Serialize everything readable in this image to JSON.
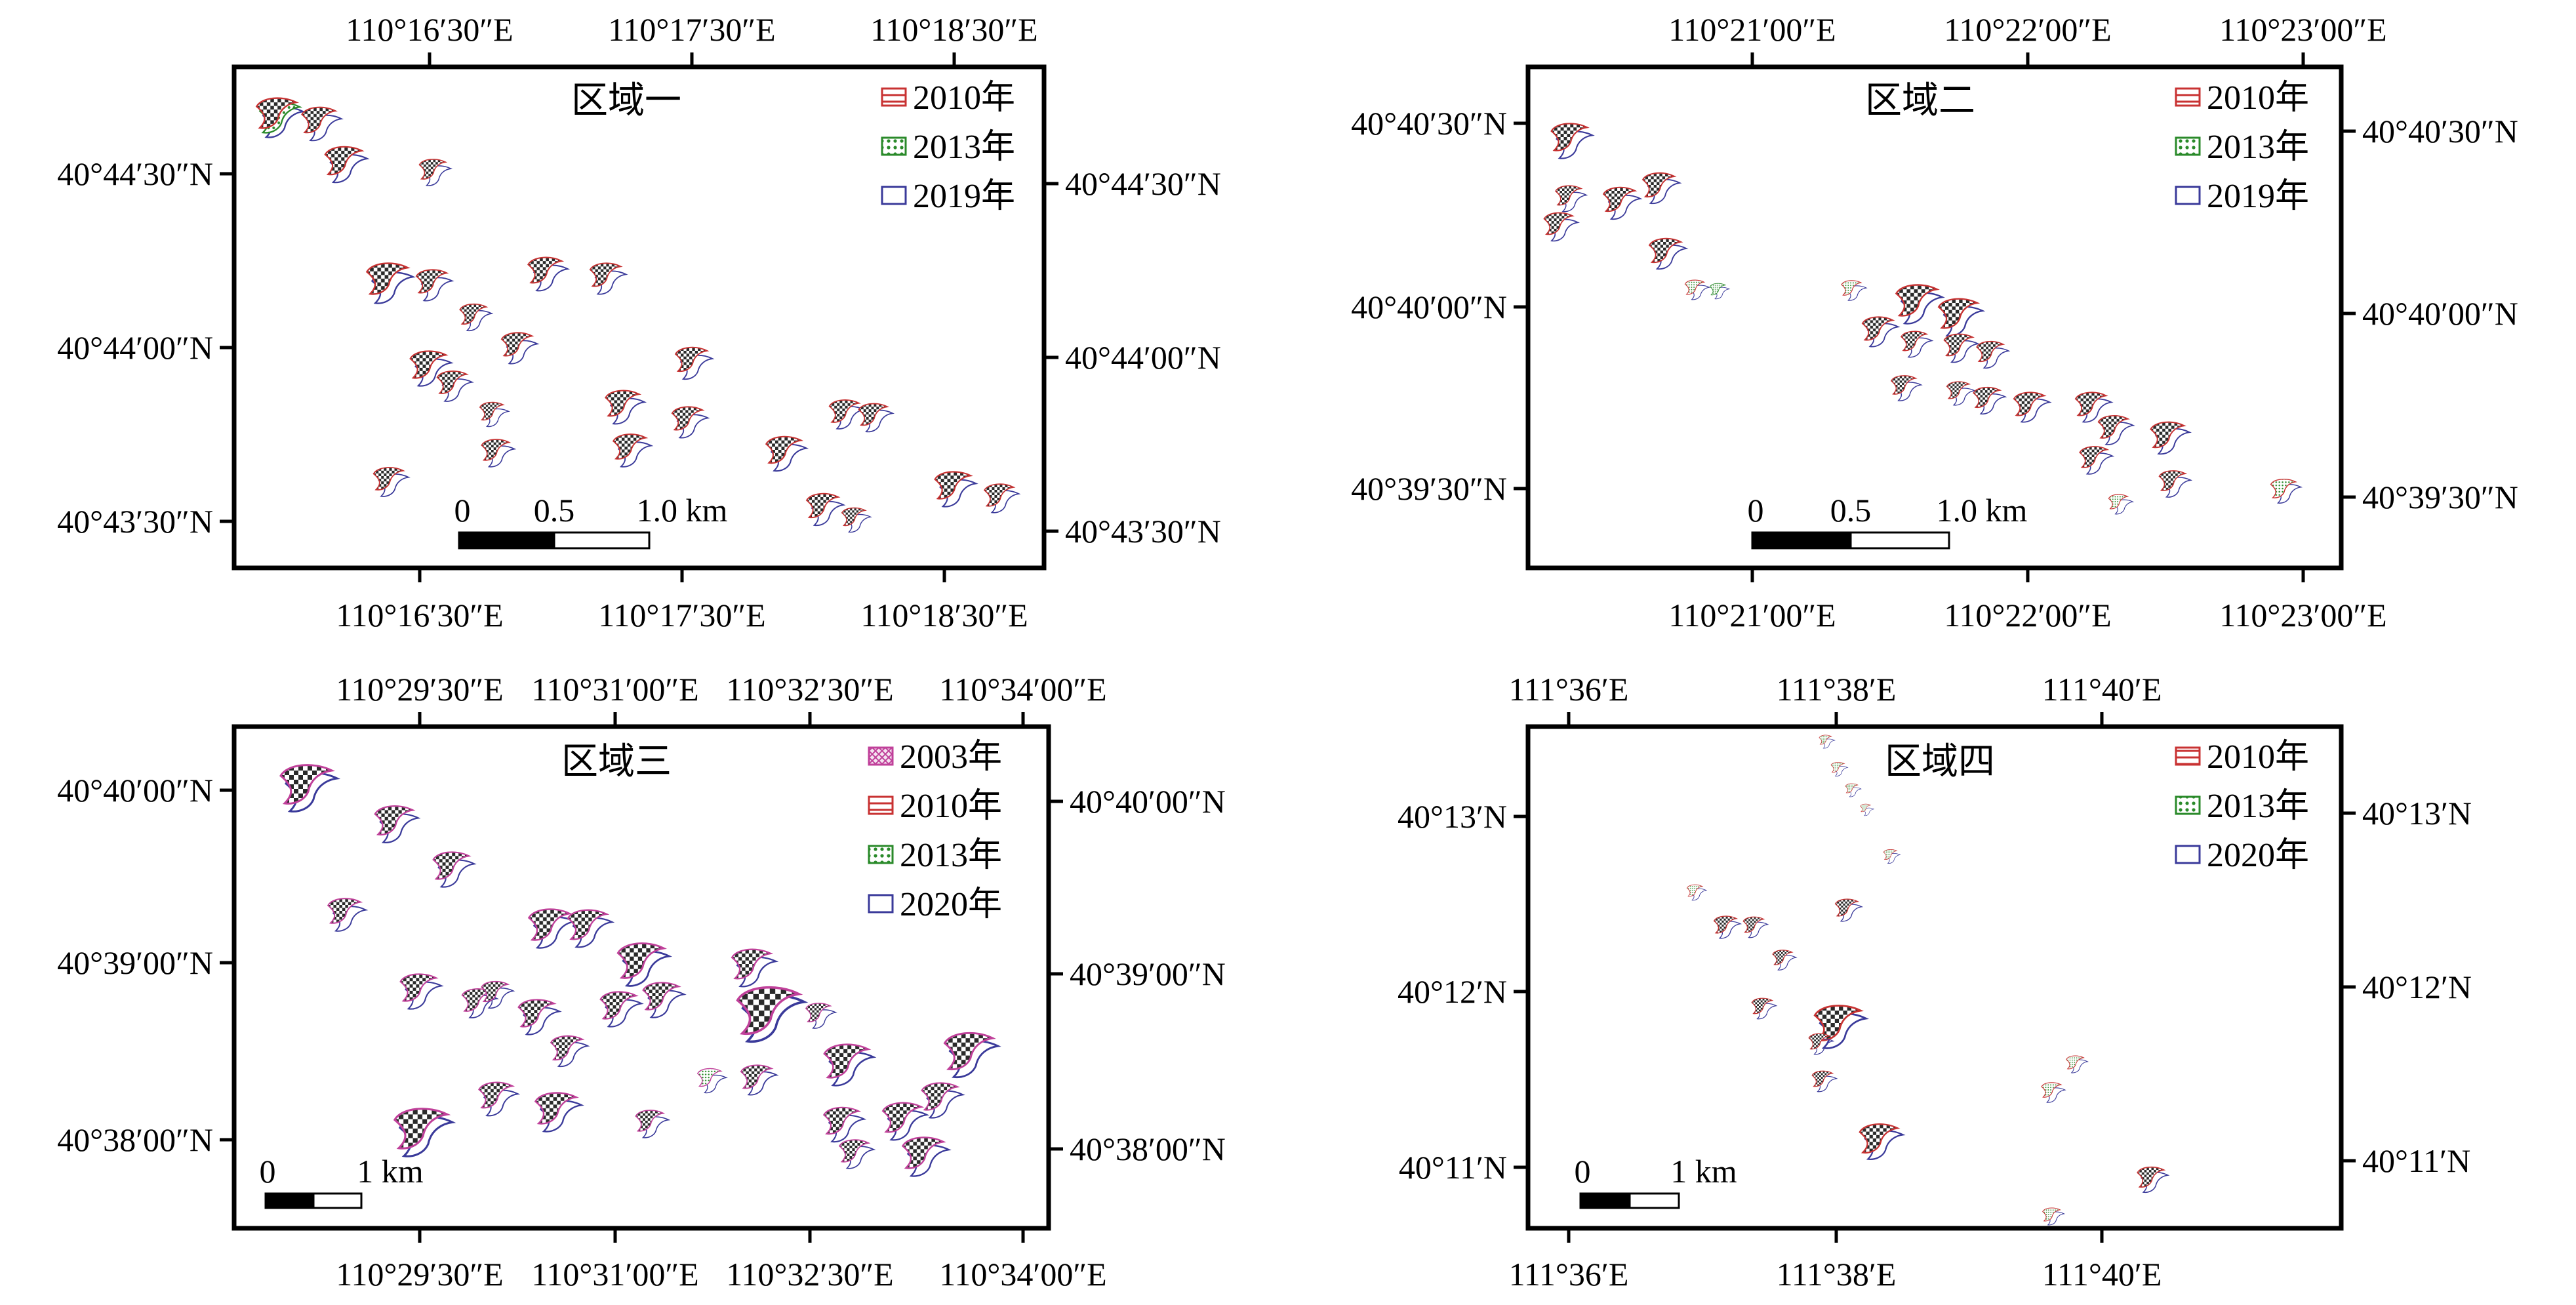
{
  "colors": {
    "y2003": "#c0409a",
    "y2010": "#c83232",
    "y2013": "#2a8a2a",
    "y2019": "#3a3a9a",
    "y2020": "#3a3a9a",
    "dune_fill": "#cccccc",
    "frame": "#000000"
  },
  "panels": [
    {
      "title": "区域一",
      "top_labels": [
        "110°16′30″E",
        "110°17′30″E",
        "110°18′30″E"
      ],
      "bottom_labels": [
        "110°16′30″E",
        "110°17′30″E",
        "110°18′30″E"
      ],
      "left_labels": [
        "40°44′30″N",
        "40°44′00″N",
        "40°43′30″N"
      ],
      "right_labels": [
        "40°44′30″N",
        "40°44′00″N",
        "40°43′30″N"
      ],
      "legend": [
        {
          "label": "2010年",
          "pattern": "y2010"
        },
        {
          "label": "2013年",
          "pattern": "y2013"
        },
        {
          "label": "2019年",
          "pattern": "y2019"
        }
      ],
      "scale": {
        "labels": [
          "0",
          "0.5",
          "1.0 km"
        ]
      }
    },
    {
      "title": "区域二",
      "top_labels": [
        "110°21′00″E",
        "110°22′00″E",
        "110°23′00″E"
      ],
      "bottom_labels": [
        "110°21′00″E",
        "110°22′00″E",
        "110°23′00″E"
      ],
      "left_labels": [
        "40°40′30″N",
        "40°40′00″N",
        "40°39′30″N"
      ],
      "right_labels": [
        "40°40′30″N",
        "40°40′00″N",
        "40°39′30″N"
      ],
      "legend": [
        {
          "label": "2010年",
          "pattern": "y2010"
        },
        {
          "label": "2013年",
          "pattern": "y2013"
        },
        {
          "label": "2019年",
          "pattern": "y2019"
        }
      ],
      "scale": {
        "labels": [
          "0",
          "0.5",
          "1.0 km"
        ]
      }
    },
    {
      "title": "区域三",
      "top_labels": [
        "110°29′30″E",
        "110°31′00″E",
        "110°32′30″E",
        "110°34′00″E"
      ],
      "bottom_labels": [
        "110°29′30″E",
        "110°31′00″E",
        "110°32′30″E",
        "110°34′00″E"
      ],
      "left_labels": [
        "40°40′00″N",
        "40°39′00″N",
        "40°38′00″N"
      ],
      "right_labels": [
        "40°40′00″N",
        "40°39′00″N",
        "40°38′00″N"
      ],
      "legend": [
        {
          "label": "2003年",
          "pattern": "y2003"
        },
        {
          "label": "2010年",
          "pattern": "y2010"
        },
        {
          "label": "2013年",
          "pattern": "y2013"
        },
        {
          "label": "2020年",
          "pattern": "y2020"
        }
      ],
      "scale": {
        "labels": [
          "0",
          "1 km"
        ]
      }
    },
    {
      "title": "区域四",
      "top_labels": [
        "111°36′E",
        "111°38′E",
        "111°40′E"
      ],
      "bottom_labels": [
        "111°36′E",
        "111°38′E",
        "111°40′E"
      ],
      "left_labels": [
        "40°13′N",
        "40°12′N",
        "40°11′N"
      ],
      "right_labels": [
        "40°13′N",
        "40°12′N",
        "40°11′N"
      ],
      "legend": [
        {
          "label": "2010年",
          "pattern": "y2010"
        },
        {
          "label": "2013年",
          "pattern": "y2013"
        },
        {
          "label": "2020年",
          "pattern": "y2020"
        }
      ],
      "scale": {
        "labels": [
          "0",
          "1 km"
        ]
      }
    }
  ]
}
